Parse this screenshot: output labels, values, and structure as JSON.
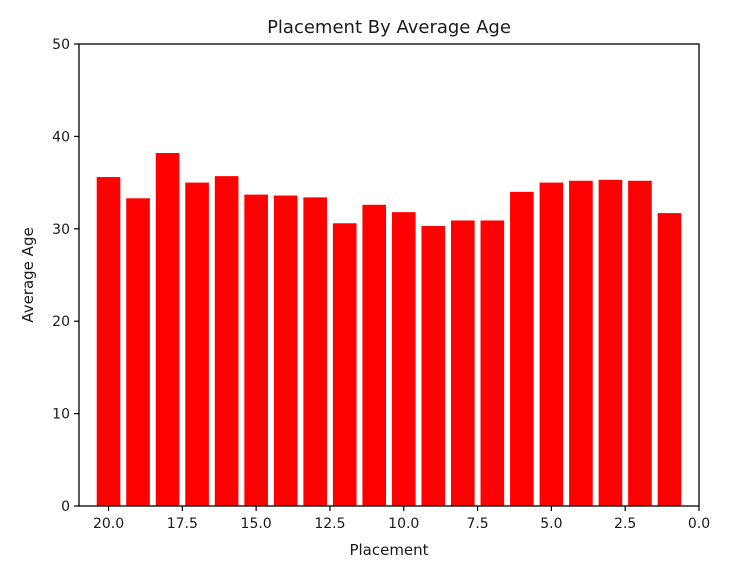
{
  "chart_data": {
    "type": "bar",
    "title": "Placement By Average Age",
    "xlabel": "Placement",
    "ylabel": "Average Age",
    "x": [
      20,
      19,
      18,
      17,
      16,
      15,
      14,
      13,
      12,
      11,
      10,
      9,
      8,
      7,
      6,
      5,
      4,
      3,
      2,
      1
    ],
    "values": [
      35.6,
      33.3,
      38.2,
      35.0,
      35.7,
      33.7,
      33.6,
      33.4,
      30.6,
      32.6,
      31.8,
      30.3,
      30.9,
      30.9,
      34.0,
      35.0,
      35.2,
      35.3,
      35.2,
      31.7
    ],
    "xlim": [
      21.0,
      0.0
    ],
    "ylim": [
      0,
      50
    ],
    "xticks": [
      20.0,
      17.5,
      15.0,
      12.5,
      10.0,
      7.5,
      5.0,
      2.5,
      0.0
    ],
    "xtick_labels": [
      "20.0",
      "17.5",
      "15.0",
      "12.5",
      "10.0",
      "7.5",
      "5.0",
      "2.5",
      "0.0"
    ],
    "yticks": [
      0,
      10,
      20,
      30,
      40,
      50
    ],
    "ytick_labels": [
      "0",
      "10",
      "20",
      "30",
      "40",
      "50"
    ],
    "bar_color": "#ff0000",
    "grid": false,
    "legend": false
  }
}
